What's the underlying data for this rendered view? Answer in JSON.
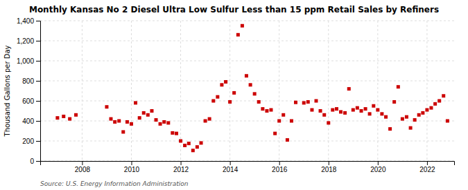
{
  "chart_data": {
    "type": "scatter",
    "title": "Monthly Kansas No 2 Diesel Ultra Low Sulfur Less than 15 ppm Retail Sales by Refiners",
    "ylabel": "Thousand Gallons per Day",
    "source": "Source: U.S. Energy Information Administration",
    "color": "#CC0000",
    "marker": "square",
    "grid": true,
    "xlim": [
      2006.3,
      2023.1
    ],
    "xticks": [
      2008,
      2010,
      2012,
      2014,
      2016,
      2018,
      2020,
      2022
    ],
    "ylim": [
      0,
      1400
    ],
    "yticks": [
      0,
      200,
      400,
      600,
      800,
      {
        "value": 1000,
        "label": "1,000"
      },
      {
        "value": 1200,
        "label": "1,200"
      },
      {
        "value": 1400,
        "label": "1,400"
      }
    ],
    "x": [
      2007.0,
      2007.25,
      2007.5,
      2007.75,
      2009.0,
      2009.17,
      2009.33,
      2009.5,
      2009.67,
      2009.83,
      2010.0,
      2010.17,
      2010.33,
      2010.5,
      2010.67,
      2010.83,
      2011.0,
      2011.17,
      2011.33,
      2011.5,
      2011.67,
      2011.83,
      2012.0,
      2012.17,
      2012.33,
      2012.5,
      2012.67,
      2012.83,
      2013.0,
      2013.17,
      2013.33,
      2013.5,
      2013.67,
      2013.83,
      2014.0,
      2014.17,
      2014.33,
      2014.5,
      2014.67,
      2014.83,
      2015.0,
      2015.17,
      2015.33,
      2015.5,
      2015.67,
      2015.83,
      2016.0,
      2016.17,
      2016.33,
      2016.5,
      2016.67,
      2017.0,
      2017.17,
      2017.33,
      2017.5,
      2017.67,
      2017.83,
      2018.0,
      2018.17,
      2018.33,
      2018.5,
      2018.67,
      2018.83,
      2019.0,
      2019.17,
      2019.33,
      2019.5,
      2019.67,
      2019.83,
      2020.0,
      2020.17,
      2020.33,
      2020.5,
      2020.67,
      2020.83,
      2021.0,
      2021.17,
      2021.33,
      2021.5,
      2021.67,
      2021.83,
      2022.0,
      2022.17,
      2022.33,
      2022.5,
      2022.67,
      2022.83
    ],
    "values": [
      430,
      445,
      420,
      460,
      540,
      420,
      390,
      400,
      290,
      390,
      370,
      580,
      430,
      480,
      460,
      500,
      410,
      370,
      390,
      380,
      280,
      275,
      200,
      155,
      175,
      105,
      140,
      180,
      400,
      420,
      600,
      640,
      760,
      790,
      590,
      680,
      1260,
      1350,
      850,
      760,
      670,
      590,
      520,
      500,
      510,
      275,
      400,
      460,
      210,
      400,
      585,
      580,
      590,
      510,
      600,
      500,
      460,
      380,
      510,
      520,
      490,
      480,
      720,
      510,
      530,
      500,
      520,
      470,
      550,
      510,
      470,
      440,
      320,
      590,
      740,
      420,
      440,
      330,
      410,
      460,
      480,
      510,
      530,
      570,
      600,
      650,
      400
    ]
  }
}
